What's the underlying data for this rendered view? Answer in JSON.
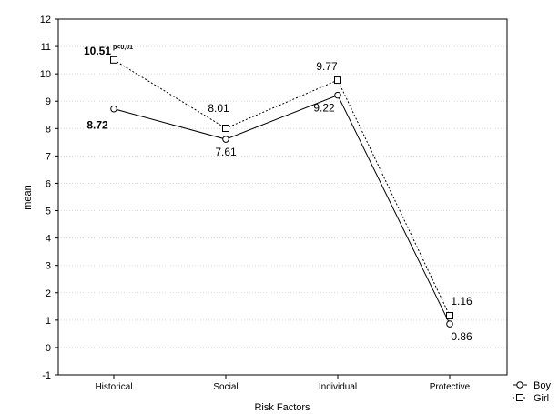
{
  "chart_data": {
    "type": "line",
    "xlabel": "Risk Factors",
    "ylabel": "mean",
    "categories": [
      "Historical",
      "Social",
      "Individual",
      "Protective"
    ],
    "ylim": [
      -1,
      12
    ],
    "yticks": [
      "-1",
      "0",
      "1",
      "2",
      "3",
      "4",
      "5",
      "6",
      "7",
      "8",
      "9",
      "10",
      "11",
      "12"
    ],
    "grid": true,
    "legend_position": "bottom-right",
    "series": [
      {
        "name": "Boy",
        "marker": "circle",
        "linestyle": "solid",
        "values": [
          8.72,
          7.61,
          9.22,
          0.86
        ],
        "labels": [
          "8.72",
          "7.61",
          "9.22",
          "0.86"
        ]
      },
      {
        "name": "Girl",
        "marker": "square",
        "linestyle": "dashed",
        "values": [
          10.51,
          8.01,
          9.77,
          1.16
        ],
        "labels": [
          "10.51",
          "8.01",
          "9.77",
          "1.16"
        ]
      }
    ],
    "annotations": [
      {
        "text": "p<0,01",
        "series": "Girl",
        "category": "Historical"
      }
    ]
  }
}
